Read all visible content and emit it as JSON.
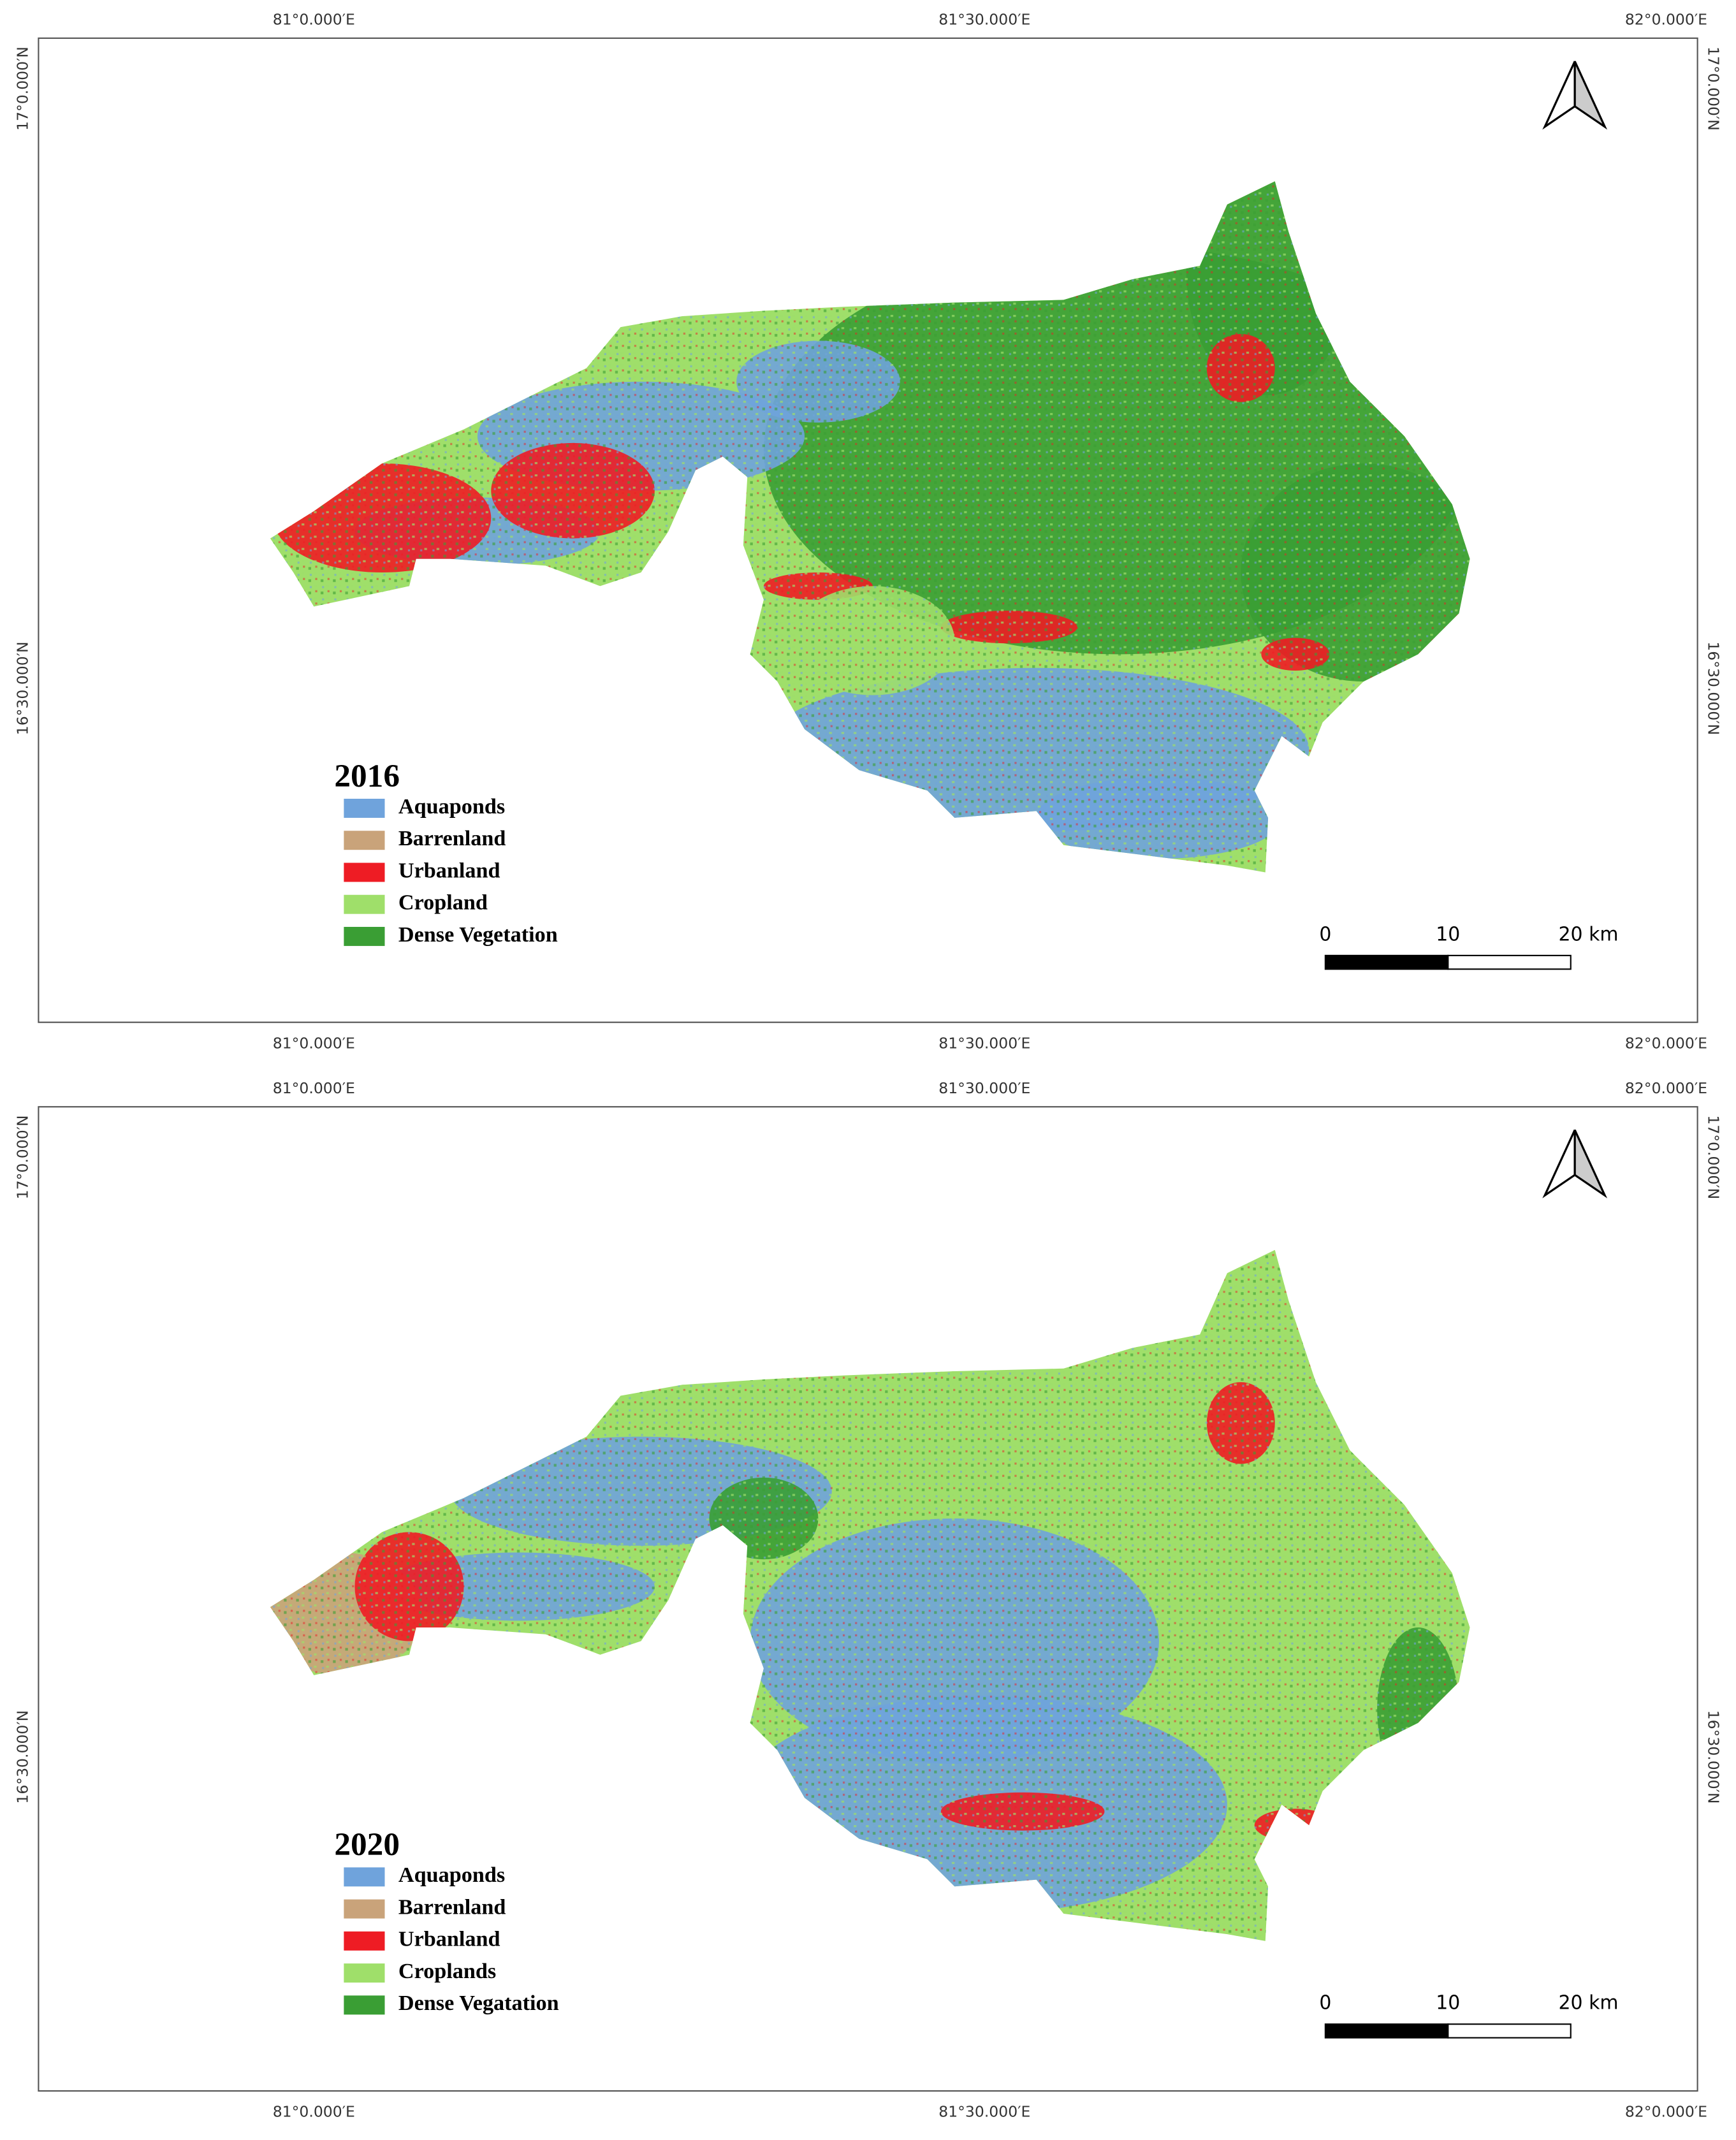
{
  "maps": [
    {
      "year": "2016",
      "legend": [
        {
          "name": "Aquaponds",
          "color": "#6fa3dc"
        },
        {
          "name": "Barrenland",
          "color": "#c9a37a"
        },
        {
          "name": "Urbanland",
          "color": "#ee1c24"
        },
        {
          "name": "Cropland",
          "color": "#9fdf6a"
        },
        {
          "name": "Dense Vegetation",
          "color": "#3a9e34"
        }
      ],
      "top_labels": [
        "81°0.000′E",
        "81°30.000′E",
        "82°0.000′E"
      ],
      "bottom_labels": [
        "81°0.000′E",
        "81°30.000′E",
        "82°0.000′E"
      ],
      "left_labels": [
        "17°0.000′N",
        "16°30.000′N"
      ],
      "right_labels": [
        "17°0.000′N",
        "16°30.000′N"
      ],
      "scale": [
        "0",
        "10",
        "20 km"
      ]
    },
    {
      "year": "2020",
      "legend": [
        {
          "name": "Aquaponds",
          "color": "#6fa3dc"
        },
        {
          "name": "Barrenland",
          "color": "#c9a37a"
        },
        {
          "name": "Urbanland",
          "color": "#ee1c24"
        },
        {
          "name": "Croplands",
          "color": "#9fdf6a"
        },
        {
          "name": "Dense Vegatation",
          "color": "#3a9e34"
        }
      ],
      "top_labels": [
        "81°0.000′E",
        "81°30.000′E",
        "82°0.000′E"
      ],
      "bottom_labels": [
        "81°0.000′E",
        "81°30.000′E",
        "82°0.000′E"
      ],
      "left_labels": [
        "17°0.000′N",
        "16°30.000′N"
      ],
      "right_labels": [
        "17°0.000′N",
        "16°30.000′N"
      ],
      "scale": [
        "0",
        "10",
        "20 km"
      ]
    }
  ]
}
